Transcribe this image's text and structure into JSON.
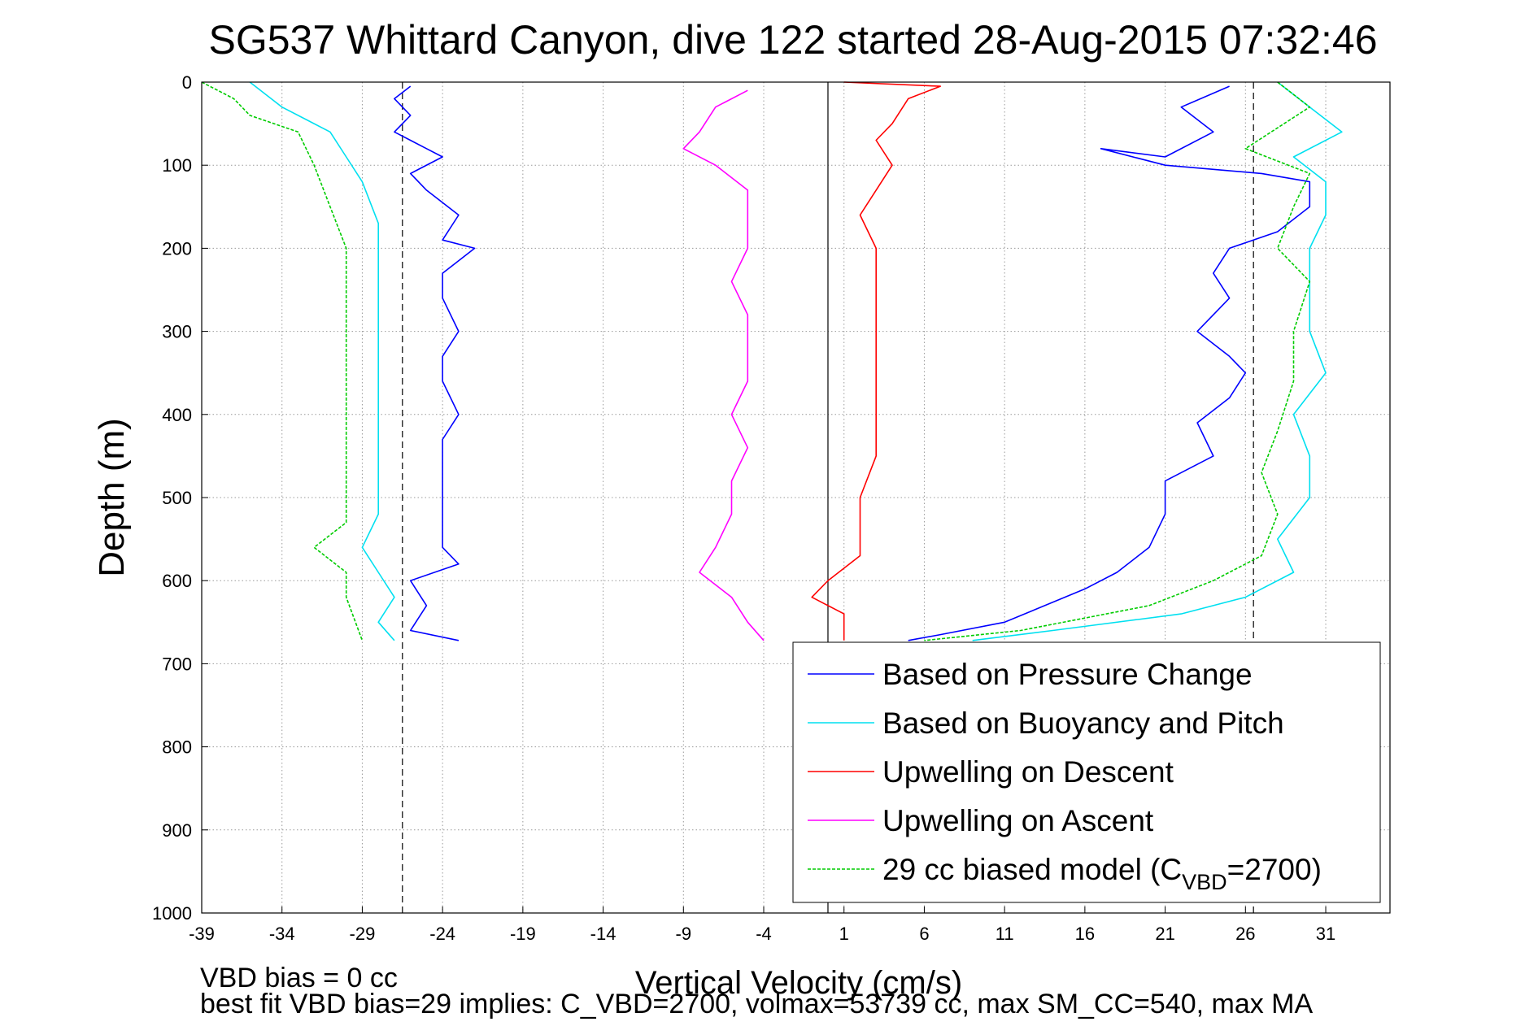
{
  "chart_data": {
    "type": "line",
    "title": "SG537 Whittard Canyon, dive 122 started 28-Aug-2015 07:32:46",
    "xlabel": "Vertical Velocity (cm/s)",
    "ylabel": "Depth (m)",
    "xlim": [
      -39,
      35
    ],
    "ylim": [
      0,
      1000
    ],
    "y_reversed": true,
    "grid": true,
    "xticks": [
      -39,
      -34,
      -29,
      -24,
      -19,
      -14,
      -9,
      -4,
      1,
      6,
      11,
      16,
      21,
      26,
      31
    ],
    "yticks": [
      0,
      100,
      200,
      300,
      400,
      500,
      600,
      700,
      800,
      900,
      1000
    ],
    "reference_lines": [
      {
        "x": 0,
        "style": "solid",
        "color": "#000000"
      },
      {
        "x": -26.5,
        "style": "dashed",
        "color": "#000000"
      },
      {
        "x": 26.5,
        "style": "dashed",
        "color": "#000000"
      }
    ],
    "legend_position": "bottom-right",
    "series": [
      {
        "name": "Based on Pressure Change",
        "color": "#0000ff",
        "segments": [
          {
            "points": [
              [
                -26,
                5
              ],
              [
                -27,
                20
              ],
              [
                -26,
                40
              ],
              [
                -27,
                60
              ],
              [
                -25,
                80
              ],
              [
                -24,
                90
              ],
              [
                -26,
                110
              ],
              [
                -25,
                130
              ],
              [
                -23,
                160
              ],
              [
                -24,
                190
              ],
              [
                -22,
                200
              ],
              [
                -24,
                230
              ],
              [
                -24,
                260
              ],
              [
                -23,
                300
              ],
              [
                -24,
                330
              ],
              [
                -24,
                360
              ],
              [
                -23,
                400
              ],
              [
                -24,
                430
              ],
              [
                -24,
                460
              ],
              [
                -24,
                500
              ],
              [
                -24,
                540
              ],
              [
                -24,
                560
              ],
              [
                -23,
                580
              ],
              [
                -26,
                600
              ],
              [
                -25,
                630
              ],
              [
                -26,
                660
              ],
              [
                -23,
                672
              ]
            ]
          },
          {
            "points": [
              [
                25,
                5
              ],
              [
                22,
                30
              ],
              [
                24,
                60
              ],
              [
                21,
                90
              ],
              [
                17,
                80
              ],
              [
                21,
                100
              ],
              [
                27,
                110
              ],
              [
                30,
                120
              ],
              [
                30,
                150
              ],
              [
                28,
                180
              ],
              [
                25,
                200
              ],
              [
                24,
                230
              ],
              [
                25,
                260
              ],
              [
                23,
                300
              ],
              [
                25,
                330
              ],
              [
                26,
                350
              ],
              [
                25,
                380
              ],
              [
                23,
                410
              ],
              [
                24,
                450
              ],
              [
                21,
                480
              ],
              [
                21,
                520
              ],
              [
                20,
                560
              ],
              [
                18,
                590
              ],
              [
                16,
                610
              ],
              [
                11,
                650
              ],
              [
                7,
                665
              ],
              [
                5,
                672
              ]
            ]
          }
        ]
      },
      {
        "name": "Based on Buoyancy and Pitch",
        "color": "#00e0f0",
        "segments": [
          {
            "points": [
              [
                -36,
                0
              ],
              [
                -34,
                30
              ],
              [
                -31,
                60
              ],
              [
                -30,
                90
              ],
              [
                -29,
                120
              ],
              [
                -28,
                170
              ],
              [
                -28,
                220
              ],
              [
                -28,
                300
              ],
              [
                -28,
                380
              ],
              [
                -28,
                460
              ],
              [
                -28,
                520
              ],
              [
                -29,
                560
              ],
              [
                -28,
                590
              ],
              [
                -27,
                620
              ],
              [
                -28,
                650
              ],
              [
                -27,
                672
              ]
            ]
          },
          {
            "points": [
              [
                28,
                0
              ],
              [
                30,
                30
              ],
              [
                32,
                60
              ],
              [
                29,
                90
              ],
              [
                31,
                120
              ],
              [
                31,
                160
              ],
              [
                30,
                200
              ],
              [
                30,
                250
              ],
              [
                30,
                300
              ],
              [
                31,
                350
              ],
              [
                29,
                400
              ],
              [
                30,
                450
              ],
              [
                30,
                500
              ],
              [
                28,
                550
              ],
              [
                29,
                590
              ],
              [
                26,
                620
              ],
              [
                22,
                640
              ],
              [
                14,
                660
              ],
              [
                9,
                672
              ]
            ]
          }
        ]
      },
      {
        "name": "Upwelling on Descent",
        "color": "#ff0000",
        "segments": [
          {
            "points": [
              [
                1,
                0
              ],
              [
                7,
                5
              ],
              [
                5,
                20
              ],
              [
                4,
                50
              ],
              [
                3,
                70
              ],
              [
                4,
                100
              ],
              [
                3,
                130
              ],
              [
                2,
                160
              ],
              [
                3,
                200
              ],
              [
                3,
                250
              ],
              [
                3,
                300
              ],
              [
                3,
                350
              ],
              [
                3,
                400
              ],
              [
                3,
                450
              ],
              [
                2,
                500
              ],
              [
                2,
                540
              ],
              [
                2,
                570
              ],
              [
                0,
                600
              ],
              [
                -1,
                620
              ],
              [
                1,
                640
              ],
              [
                1,
                672
              ]
            ]
          }
        ]
      },
      {
        "name": "Upwelling on Ascent",
        "color": "#ff00ff",
        "segments": [
          {
            "points": [
              [
                -5,
                10
              ],
              [
                -7,
                30
              ],
              [
                -8,
                60
              ],
              [
                -9,
                80
              ],
              [
                -7,
                100
              ],
              [
                -5,
                130
              ],
              [
                -5,
                160
              ],
              [
                -5,
                200
              ],
              [
                -6,
                240
              ],
              [
                -5,
                280
              ],
              [
                -5,
                320
              ],
              [
                -5,
                360
              ],
              [
                -6,
                400
              ],
              [
                -5,
                440
              ],
              [
                -6,
                480
              ],
              [
                -6,
                520
              ],
              [
                -7,
                560
              ],
              [
                -8,
                590
              ],
              [
                -6,
                620
              ],
              [
                -5,
                650
              ],
              [
                -4,
                672
              ]
            ]
          }
        ]
      },
      {
        "name": "29 cc biased model (C_VBD=2700)",
        "color": "#00cc00",
        "dashed": true,
        "segments": [
          {
            "points": [
              [
                -39,
                0
              ],
              [
                -37,
                20
              ],
              [
                -36,
                40
              ],
              [
                -33,
                60
              ],
              [
                -32,
                100
              ],
              [
                -31,
                150
              ],
              [
                -30,
                200
              ],
              [
                -30,
                260
              ],
              [
                -30,
                320
              ],
              [
                -30,
                380
              ],
              [
                -30,
                430
              ],
              [
                -30,
                480
              ],
              [
                -30,
                530
              ],
              [
                -32,
                560
              ],
              [
                -30,
                590
              ],
              [
                -30,
                620
              ],
              [
                -29,
                672
              ]
            ]
          },
          {
            "points": [
              [
                28,
                0
              ],
              [
                30,
                30
              ],
              [
                26,
                80
              ],
              [
                30,
                110
              ],
              [
                29,
                150
              ],
              [
                28,
                200
              ],
              [
                30,
                240
              ],
              [
                29,
                300
              ],
              [
                29,
                360
              ],
              [
                28,
                420
              ],
              [
                27,
                470
              ],
              [
                28,
                520
              ],
              [
                27,
                570
              ],
              [
                24,
                600
              ],
              [
                20,
                630
              ],
              [
                12,
                660
              ],
              [
                6,
                672
              ]
            ]
          }
        ]
      }
    ]
  },
  "legend": {
    "items": [
      {
        "label": "Based on Pressure Change",
        "color": "#0000ff",
        "dashed": false
      },
      {
        "label": "Based on Buoyancy and Pitch",
        "color": "#00e0f0",
        "dashed": false
      },
      {
        "label": "Upwelling on Descent",
        "color": "#ff0000",
        "dashed": false
      },
      {
        "label": "Upwelling on Ascent",
        "color": "#ff00ff",
        "dashed": false
      },
      {
        "label": "29 cc biased model (C",
        "label_sub": "VBD",
        "label_suffix": "=2700)",
        "color": "#00cc00",
        "dashed": true
      }
    ]
  },
  "footer": {
    "line1": "VBD bias = 0 cc",
    "line2": "best fit VBD bias=29 implies: C_VBD=2700, volmax=53739 cc, max SM_CC=540, max MA"
  }
}
